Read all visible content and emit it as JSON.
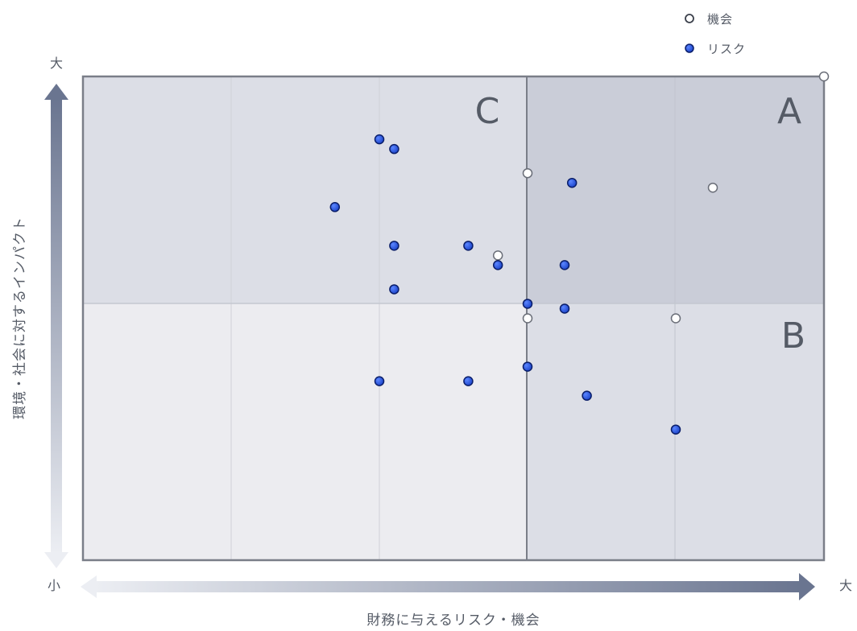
{
  "chart_data": {
    "type": "scatter",
    "xlabel": "財務に与えるリスク・機会",
    "ylabel": "環境・社会に対するインパクト",
    "x_axis_end_labels": {
      "high": "大"
    },
    "y_axis_end_labels": {
      "high": "大",
      "low": "小"
    },
    "xlim": [
      0,
      100
    ],
    "ylim": [
      0,
      100
    ],
    "grid": true,
    "quadrant_labels": {
      "top_right": "A",
      "bottom_right": "B",
      "top_left": "C"
    },
    "legend": {
      "position": "top-right",
      "entries": [
        "機会",
        "リスク"
      ]
    },
    "series": [
      {
        "name": "機会",
        "color": "#ffffff",
        "points": [
          {
            "x": 100,
            "y": 100
          },
          {
            "x": 60,
            "y": 80
          },
          {
            "x": 85,
            "y": 77
          },
          {
            "x": 56,
            "y": 63
          },
          {
            "x": 60,
            "y": 50
          },
          {
            "x": 80,
            "y": 50
          }
        ]
      },
      {
        "name": "リスク",
        "color": "#1f4fd8",
        "points": [
          {
            "x": 40,
            "y": 87
          },
          {
            "x": 42,
            "y": 85
          },
          {
            "x": 66,
            "y": 78
          },
          {
            "x": 34,
            "y": 73
          },
          {
            "x": 42,
            "y": 65
          },
          {
            "x": 52,
            "y": 65
          },
          {
            "x": 56,
            "y": 61
          },
          {
            "x": 65,
            "y": 61
          },
          {
            "x": 42,
            "y": 56
          },
          {
            "x": 60,
            "y": 53
          },
          {
            "x": 65,
            "y": 52
          },
          {
            "x": 60,
            "y": 40
          },
          {
            "x": 40,
            "y": 37
          },
          {
            "x": 52,
            "y": 37
          },
          {
            "x": 68,
            "y": 34
          },
          {
            "x": 80,
            "y": 27
          }
        ]
      }
    ]
  }
}
